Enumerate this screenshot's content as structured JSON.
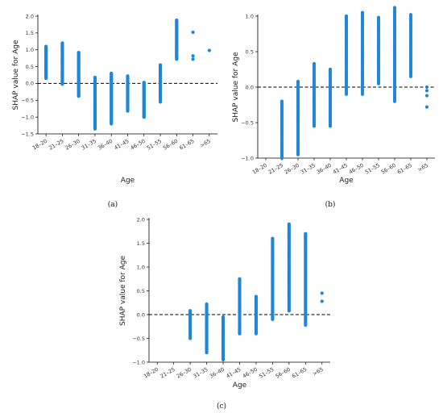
{
  "chart_data": [
    {
      "type": "scatter",
      "panel_label": "(a)",
      "xlabel": "Age",
      "ylabel": "SHAP value for Age",
      "categories": [
        "18–20",
        "21–25",
        "26–30",
        "31–35",
        "36–40",
        "41–45",
        "46–50",
        "51–55",
        "56–60",
        "61–65",
        ">65"
      ],
      "ylim": [
        -1.5,
        2.0
      ],
      "yticks": [
        -1.5,
        -1.0,
        -0.5,
        0.0,
        0.5,
        1.0,
        1.5,
        2.0
      ],
      "yticklabels": [
        "−1.5",
        "−1.0",
        "−0.5",
        "0.0",
        "0.5",
        "1.0",
        "1.5",
        "2.0"
      ],
      "baseline": 0,
      "point_color": "#1f86d8",
      "series": [
        {
          "category": "18–20",
          "min": 0.15,
          "max": 1.1
        },
        {
          "category": "21–25",
          "min": -0.02,
          "max": 1.2
        },
        {
          "category": "26–30",
          "min": -0.38,
          "max": 0.92
        },
        {
          "category": "31–35",
          "min": -1.35,
          "max": 0.18
        },
        {
          "category": "36–40",
          "min": -1.2,
          "max": 0.3
        },
        {
          "category": "41–45",
          "min": -0.82,
          "max": 0.22
        },
        {
          "category": "46–50",
          "min": -1.0,
          "max": 0.03
        },
        {
          "category": "51–55",
          "min": -0.55,
          "max": 0.55
        },
        {
          "category": "56–60",
          "min": 0.72,
          "max": 1.88
        },
        {
          "category": "61–65",
          "points": [
            0.72,
            0.82,
            1.52
          ]
        },
        {
          "category": ">65",
          "points": [
            0.98
          ]
        }
      ]
    },
    {
      "type": "scatter",
      "panel_label": "(b)",
      "xlabel": "Age",
      "ylabel": "SHAP value for Age",
      "categories": [
        "18–20",
        "21–25",
        "26–30",
        "31–35",
        "36–40",
        "41–45",
        "46–50",
        "51–55",
        "56–60",
        "61–65",
        ">65"
      ],
      "ylim": [
        -1.0,
        1.0
      ],
      "yticks": [
        -1.0,
        -0.5,
        0.0,
        0.5,
        1.0
      ],
      "yticklabels": [
        "−1.0",
        "−0.5",
        "0.0",
        "0.5",
        "1.0"
      ],
      "baseline": 0,
      "point_color": "#1f86d8",
      "series": [
        {
          "category": "18–20",
          "points": []
        },
        {
          "category": "21–25",
          "min": -1.0,
          "max": -0.2
        },
        {
          "category": "26–30",
          "min": -0.95,
          "max": 0.08
        },
        {
          "category": "31–35",
          "min": -0.55,
          "max": 0.33
        },
        {
          "category": "36–40",
          "min": -0.55,
          "max": 0.25
        },
        {
          "category": "41–45",
          "min": -0.1,
          "max": 1.0
        },
        {
          "category": "46–50",
          "min": -0.1,
          "max": 1.05
        },
        {
          "category": "51–55",
          "min": 0.05,
          "max": 0.98
        },
        {
          "category": "56–60",
          "min": -0.2,
          "max": 1.12
        },
        {
          "category": "61–65",
          "min": 0.15,
          "max": 1.02
        },
        {
          "category": ">65",
          "points": [
            -0.28,
            -0.12,
            -0.05,
            0.0
          ]
        }
      ]
    },
    {
      "type": "scatter",
      "panel_label": "(c)",
      "xlabel": "Age",
      "ylabel": "SHAP value for Age",
      "categories": [
        "18–20",
        "21–25",
        "26–30",
        "31–35",
        "36–40",
        "41–45",
        "46–50",
        "51–55",
        "56–60",
        "61–65",
        ">65"
      ],
      "ylim": [
        -1.0,
        2.0
      ],
      "yticks": [
        -1.0,
        -0.5,
        0.0,
        0.5,
        1.0,
        1.5,
        2.0
      ],
      "yticklabels": [
        "−1.0",
        "−0.5",
        "0.0",
        "0.5",
        "1.0",
        "1.5",
        "2.0"
      ],
      "baseline": 0,
      "point_color": "#1f86d8",
      "series": [
        {
          "category": "18–20",
          "points": []
        },
        {
          "category": "21–25",
          "points": []
        },
        {
          "category": "26–30",
          "min": -0.5,
          "max": 0.08
        },
        {
          "category": "31–35",
          "min": -0.8,
          "max": 0.22
        },
        {
          "category": "36–40",
          "min": -0.95,
          "max": -0.05
        },
        {
          "category": "41–45",
          "min": -0.4,
          "max": 0.75
        },
        {
          "category": "46–50",
          "min": -0.4,
          "max": 0.38
        },
        {
          "category": "51–55",
          "min": -0.1,
          "max": 1.6
        },
        {
          "category": "56–60",
          "min": 0.08,
          "max": 1.9
        },
        {
          "category": "61–65",
          "min": -0.22,
          "max": 1.7
        },
        {
          "category": ">65",
          "points": [
            0.28,
            0.45
          ]
        }
      ]
    }
  ]
}
